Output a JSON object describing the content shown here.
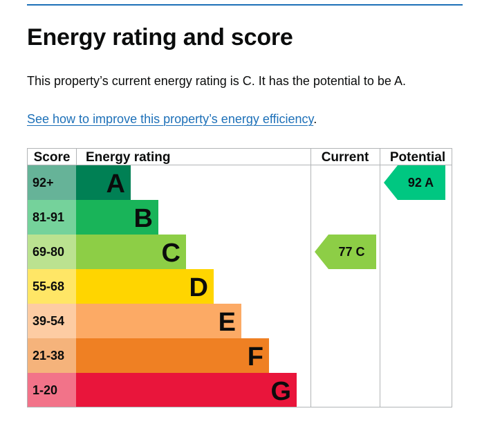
{
  "page": {
    "title": "Energy rating and score",
    "summary": "This property’s current energy rating is C. It has the potential to be A.",
    "improve_link": "See how to improve this property’s energy efficiency",
    "improve_link_suffix": "."
  },
  "chart_data": {
    "type": "table",
    "columns": [
      "Score",
      "Energy rating",
      "Current",
      "Potential"
    ],
    "bands": [
      {
        "score": "92+",
        "letter": "A",
        "color": "#008054",
        "light": "#66b398"
      },
      {
        "score": "81-91",
        "letter": "B",
        "color": "#19b459",
        "light": "#75d29b"
      },
      {
        "score": "69-80",
        "letter": "C",
        "color": "#8dce46",
        "light": "#bbe290"
      },
      {
        "score": "55-68",
        "letter": "D",
        "color": "#ffd500",
        "light": "#ffe666"
      },
      {
        "score": "39-54",
        "letter": "E",
        "color": "#fcaa65",
        "light": "#fdcca3"
      },
      {
        "score": "21-38",
        "letter": "F",
        "color": "#ef8023",
        "light": "#f5b37b"
      },
      {
        "score": "1-20",
        "letter": "G",
        "color": "#e9153b",
        "light": "#f27389"
      }
    ],
    "current": {
      "score": 77,
      "letter": "C",
      "label": "77  C",
      "color": "#8dce46"
    },
    "potential": {
      "score": 92,
      "letter": "A",
      "label": "92  A",
      "color": "#00c781"
    }
  }
}
